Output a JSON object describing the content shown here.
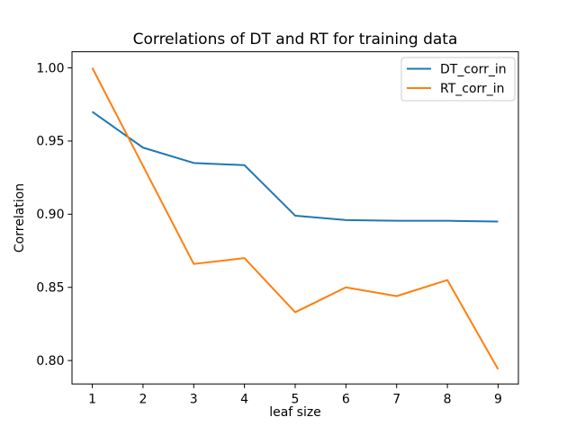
{
  "figure": {
    "background": "#ffffff"
  },
  "chart_data": {
    "type": "line",
    "title": "Correlations of DT and RT for training data",
    "xlabel": "leaf size",
    "ylabel": "Correlation",
    "x": [
      1,
      2,
      3,
      4,
      5,
      6,
      7,
      8,
      9
    ],
    "series": [
      {
        "name": "DT_corr_in",
        "color": "#1f77b4",
        "values": [
          0.97,
          0.9455,
          0.935,
          0.9335,
          0.899,
          0.896,
          0.8955,
          0.8955,
          0.895
        ]
      },
      {
        "name": "RT_corr_in",
        "color": "#ff7f0e",
        "values": [
          1.0,
          0.933,
          0.866,
          0.87,
          0.833,
          0.85,
          0.844,
          0.855,
          0.794
        ]
      }
    ],
    "xlim": [
      0.6,
      9.4
    ],
    "ylim": [
      0.784,
      1.011
    ],
    "xticks": [
      1,
      2,
      3,
      4,
      5,
      6,
      7,
      8,
      9
    ],
    "xtick_labels": [
      "1",
      "2",
      "3",
      "4",
      "5",
      "6",
      "7",
      "8",
      "9"
    ],
    "yticks": [
      0.8,
      0.85,
      0.9,
      0.95,
      1.0
    ],
    "ytick_labels": [
      "0.80",
      "0.85",
      "0.90",
      "0.95",
      "1.00"
    ],
    "grid": false,
    "legend_position": "upper right",
    "axis_color": "#000000",
    "spine_color": "#000000",
    "legend_edge_color": "#cccccc",
    "legend_face_color": "#ffffff"
  }
}
